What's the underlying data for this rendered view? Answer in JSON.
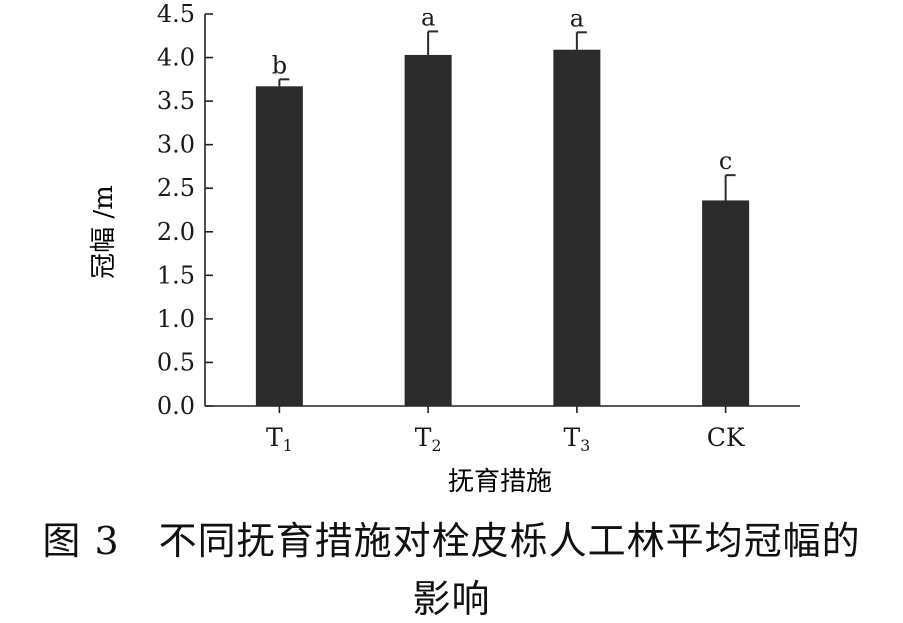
{
  "chart_data": {
    "type": "bar",
    "xlabel": "抚育措施",
    "ylabel": "冠幅 /m",
    "ylim": [
      0,
      4.5
    ],
    "yticks": [
      "0.0",
      "0.5",
      "1.0",
      "1.5",
      "2.0",
      "2.5",
      "3.0",
      "3.5",
      "4.0",
      "4.5"
    ],
    "categories": [
      {
        "base": "T",
        "sub": "1"
      },
      {
        "base": "T",
        "sub": "2"
      },
      {
        "base": "T",
        "sub": "3"
      },
      {
        "base": "CK",
        "sub": ""
      }
    ],
    "values": [
      3.67,
      4.03,
      4.09,
      2.36
    ],
    "errors": [
      0.08,
      0.27,
      0.2,
      0.29
    ],
    "letters": [
      "b",
      "a",
      "a",
      "c"
    ],
    "bar_color": "#2b2b2b",
    "grid": false,
    "legend": "none"
  },
  "caption": {
    "line1": "图 3　不同抚育措施对栓皮栎人工林平均冠幅的",
    "line2": "影响"
  }
}
